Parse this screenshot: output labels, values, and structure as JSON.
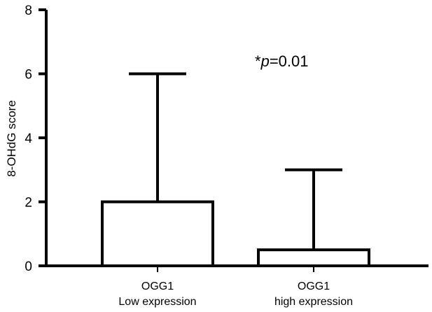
{
  "chart_data": {
    "type": "bar",
    "categories": [
      [
        "OGG1",
        "Low expression"
      ],
      [
        "OGG1",
        "high expression"
      ]
    ],
    "values": [
      2,
      0.5
    ],
    "error_upper": [
      6,
      3
    ],
    "ylabel": "8-OHdG score",
    "ylim": [
      0,
      8
    ],
    "yticks": [
      0,
      2,
      4,
      6,
      8
    ],
    "annotation": {
      "star": "*",
      "p_symbol": "p",
      "p_value": "=0.01"
    },
    "grid": false,
    "legend": "none",
    "colors": {
      "bar_fill": "#ffffff",
      "stroke": "#000000"
    }
  }
}
